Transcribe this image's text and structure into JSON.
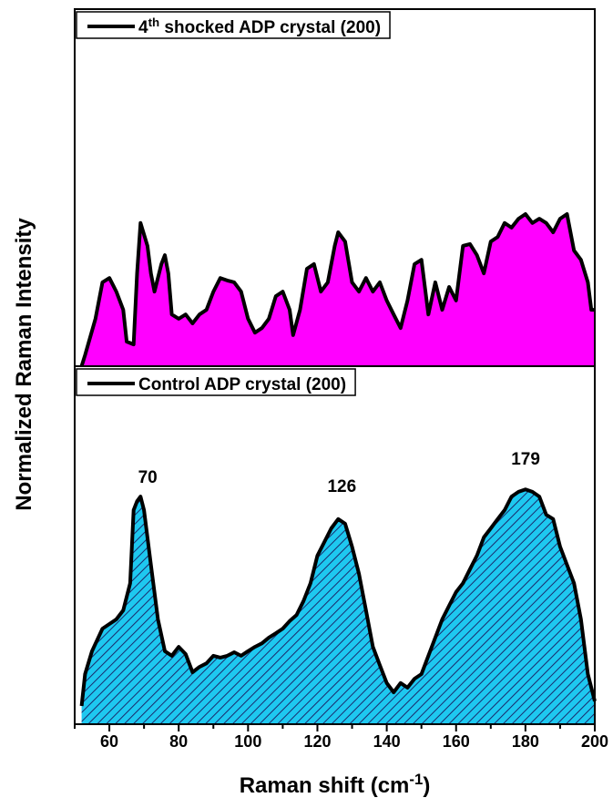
{
  "chart_data": [
    {
      "type": "area",
      "x": [
        52,
        53,
        56,
        58,
        60,
        62,
        64,
        65,
        67,
        68,
        69,
        71,
        72,
        73,
        75,
        76,
        77,
        78,
        80,
        82,
        84,
        86,
        88,
        90,
        92,
        94,
        96,
        98,
        100,
        102,
        104,
        106,
        108,
        110,
        112,
        113,
        115,
        117,
        119,
        121,
        123,
        125,
        126,
        128,
        130,
        132,
        134,
        136,
        138,
        140,
        142,
        144,
        146,
        148,
        150,
        152,
        154,
        156,
        158,
        160,
        162,
        164,
        166,
        168,
        170,
        172,
        174,
        176,
        178,
        180,
        182,
        184,
        186,
        188,
        190,
        192,
        194,
        196,
        198,
        199,
        200
      ],
      "series": [
        {
          "name": "4th shocked ADP crystal (200)",
          "color": "#ff00ff",
          "values": [
            0,
            3.1,
            13.3,
            23.5,
            24.7,
            20.9,
            15.8,
            6.9,
            6.1,
            26.0,
            40.1,
            33.7,
            26.0,
            20.9,
            28.6,
            31.1,
            26.0,
            14.5,
            13.3,
            14.5,
            12.0,
            14.5,
            15.8,
            20.9,
            24.7,
            24.0,
            23.5,
            20.9,
            13.3,
            9.4,
            10.7,
            13.3,
            19.6,
            20.9,
            15.8,
            8.7,
            15.8,
            27.3,
            28.6,
            20.9,
            23.5,
            33.7,
            37.5,
            34.9,
            23.5,
            20.9,
            24.7,
            20.9,
            23.5,
            18.4,
            14.5,
            10.7,
            18.4,
            28.6,
            29.8,
            14.5,
            23.5,
            15.8,
            22.2,
            18.4,
            33.7,
            34.2,
            31.1,
            26.0,
            34.9,
            36.2,
            40.1,
            38.8,
            41.3,
            42.6,
            40.1,
            41.3,
            40.1,
            37.5,
            41.3,
            42.6,
            32.4,
            29.8,
            23.5,
            15.8,
            15.8
          ]
        }
      ],
      "xlim": [
        50,
        200
      ],
      "ylim": [
        0,
        100
      ],
      "legend": "upper left"
    },
    {
      "type": "area",
      "x": [
        52,
        53,
        55,
        58,
        60,
        62,
        64,
        66,
        67,
        68,
        69,
        70,
        72,
        74,
        76,
        78,
        80,
        82,
        84,
        86,
        88,
        90,
        92,
        94,
        96,
        98,
        100,
        102,
        104,
        106,
        108,
        110,
        112,
        114,
        116,
        118,
        120,
        122,
        124,
        126,
        128,
        130,
        132,
        134,
        136,
        138,
        140,
        142,
        144,
        146,
        148,
        150,
        152,
        154,
        156,
        158,
        160,
        162,
        164,
        166,
        168,
        170,
        172,
        174,
        176,
        178,
        180,
        182,
        184,
        186,
        188,
        190,
        192,
        194,
        196,
        198,
        200
      ],
      "series": [
        {
          "name": "Control ADP crystal (200)",
          "color": "#1ec8f0",
          "hatch": true,
          "values": [
            5.1,
            14.0,
            20.4,
            26.7,
            28.0,
            29.3,
            31.8,
            39.4,
            59.8,
            62.3,
            63.6,
            59.8,
            44.5,
            29.3,
            20.4,
            19.1,
            21.6,
            19.6,
            14.5,
            16.0,
            17.0,
            19.1,
            18.6,
            19.1,
            20.1,
            19.1,
            20.4,
            21.6,
            22.6,
            24.2,
            25.4,
            26.7,
            28.8,
            30.5,
            34.4,
            39.4,
            47.1,
            50.9,
            54.7,
            57.3,
            56.0,
            49.6,
            42.0,
            31.8,
            21.6,
            16.5,
            11.5,
            8.9,
            11.5,
            10.2,
            12.7,
            14.0,
            19.1,
            24.2,
            29.3,
            33.1,
            36.9,
            39.4,
            43.3,
            47.1,
            52.2,
            54.7,
            57.3,
            59.8,
            63.6,
            64.9,
            65.6,
            64.9,
            63.6,
            58.5,
            57.3,
            49.6,
            44.5,
            39.4,
            29.3,
            14.0,
            6.4
          ]
        }
      ],
      "xlim": [
        50,
        200
      ],
      "ylim": [
        0,
        100
      ],
      "xticks": [
        60,
        80,
        100,
        120,
        140,
        160,
        180,
        200
      ],
      "xlabel": "Raman shift (cm-1)",
      "ylabel": "Normalized Raman Intensity",
      "legend": "upper left",
      "annotations": [
        {
          "text": "70",
          "x": 70
        },
        {
          "text": "126",
          "x": 126
        },
        {
          "text": "179",
          "x": 179
        }
      ]
    }
  ]
}
